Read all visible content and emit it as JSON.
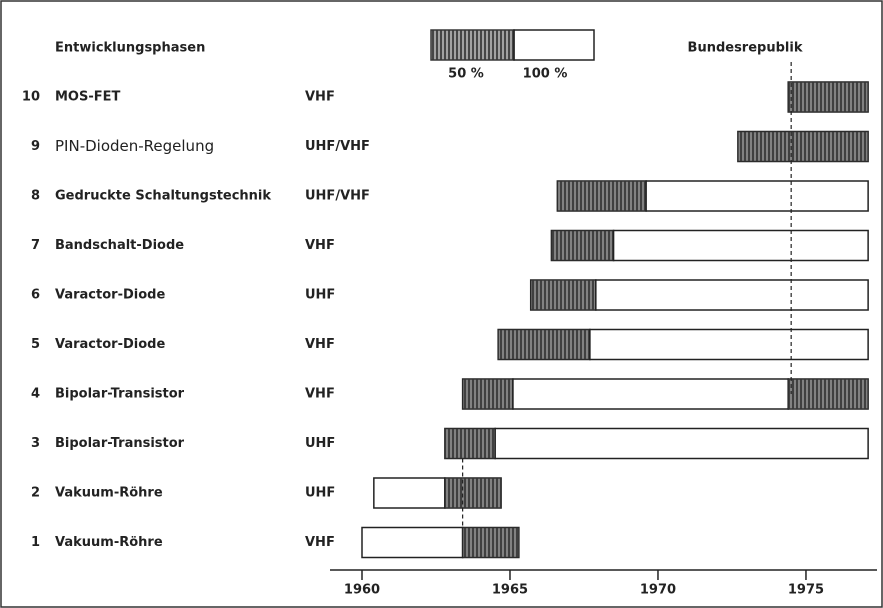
{
  "chart_data": {
    "type": "gantt",
    "title": "Entwicklungsphasen",
    "legend": {
      "half_label": "50 %",
      "full_label": "100 %"
    },
    "shade_color": "#5a5a5a",
    "xlim": [
      1960,
      1977.4
    ],
    "xticks": [
      1960,
      1965,
      1970,
      1975
    ],
    "reference_lines": [
      {
        "x": 1974.5,
        "label": "Bundesrepublik"
      },
      {
        "x": 1963.4
      }
    ],
    "rows": [
      {
        "num": "10",
        "label": "MOS-FET",
        "band": "VHF",
        "segments": [
          {
            "from": 1974.4,
            "to": 1977.1,
            "shaded": true
          }
        ]
      },
      {
        "num": "9",
        "label": "PIN-Dioden-Regelung",
        "band": "UHF/VHF",
        "segments": [
          {
            "from": 1972.7,
            "to": 1977.1,
            "shaded": true
          }
        ]
      },
      {
        "num": "8",
        "label": "Gedruckte Schaltungstechnik",
        "band": "UHF/VHF",
        "segments": [
          {
            "from": 1966.6,
            "to": 1969.6,
            "shaded": true
          },
          {
            "from": 1969.6,
            "to": 1977.1,
            "shaded": false
          }
        ]
      },
      {
        "num": "7",
        "label": "Bandschalt-Diode",
        "band": "VHF",
        "segments": [
          {
            "from": 1966.4,
            "to": 1968.5,
            "shaded": true
          },
          {
            "from": 1968.5,
            "to": 1977.1,
            "shaded": false
          }
        ]
      },
      {
        "num": "6",
        "label": "Varactor-Diode",
        "band": "UHF",
        "segments": [
          {
            "from": 1965.7,
            "to": 1967.9,
            "shaded": true
          },
          {
            "from": 1967.9,
            "to": 1977.1,
            "shaded": false
          }
        ]
      },
      {
        "num": "5",
        "label": "Varactor-Diode",
        "band": "VHF",
        "segments": [
          {
            "from": 1964.6,
            "to": 1967.7,
            "shaded": true
          },
          {
            "from": 1967.7,
            "to": 1977.1,
            "shaded": false
          }
        ]
      },
      {
        "num": "4",
        "label": "Bipolar-Transistor",
        "band": "VHF",
        "segments": [
          {
            "from": 1963.4,
            "to": 1965.1,
            "shaded": true
          },
          {
            "from": 1965.1,
            "to": 1974.4,
            "shaded": false
          },
          {
            "from": 1974.4,
            "to": 1977.1,
            "shaded": true
          }
        ]
      },
      {
        "num": "3",
        "label": "Bipolar-Transistor",
        "band": "UHF",
        "segments": [
          {
            "from": 1962.8,
            "to": 1964.5,
            "shaded": true
          },
          {
            "from": 1964.5,
            "to": 1977.1,
            "shaded": false
          }
        ]
      },
      {
        "num": "2",
        "label": "Vakuum-Röhre",
        "band": "UHF",
        "segments": [
          {
            "from": 1960.4,
            "to": 1962.8,
            "shaded": false
          },
          {
            "from": 1962.8,
            "to": 1964.7,
            "shaded": true
          }
        ]
      },
      {
        "num": "1",
        "label": "Vakuum-Röhre",
        "band": "VHF",
        "segments": [
          {
            "from": 1960.0,
            "to": 1963.4,
            "shaded": false
          },
          {
            "from": 1963.4,
            "to": 1965.3,
            "shaded": true
          }
        ]
      }
    ]
  }
}
